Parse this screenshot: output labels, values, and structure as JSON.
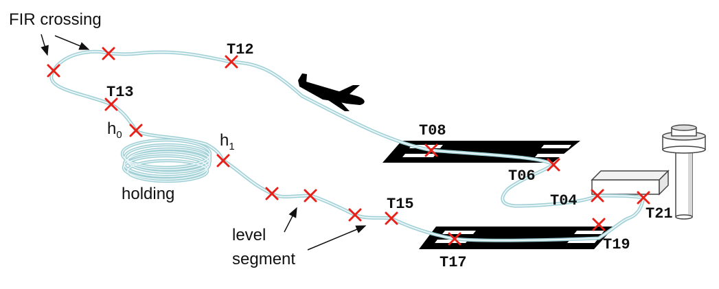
{
  "annotations": {
    "fir_crossing": "FIR crossing",
    "holding": "holding",
    "level_line1": "level",
    "level_line2": "segment"
  },
  "heights": {
    "h0_base": "h",
    "h0_sub": "0",
    "h1_base": "h",
    "h1_sub": "1"
  },
  "waypoints": {
    "T12": "T12",
    "T13": "T13",
    "T08": "T08",
    "T06": "T06",
    "T04": "T04",
    "T21": "T21",
    "T15": "T15",
    "T17": "T17",
    "T19": "T19"
  },
  "colors": {
    "track": "#a9d4d9",
    "marker": "#e8201a",
    "runway": "#000000",
    "aircraft": "#000000"
  },
  "icons": [
    "aircraft-icon",
    "runway-icon",
    "terminal-building-icon",
    "control-tower-icon",
    "waypoint-marker-icon"
  ]
}
